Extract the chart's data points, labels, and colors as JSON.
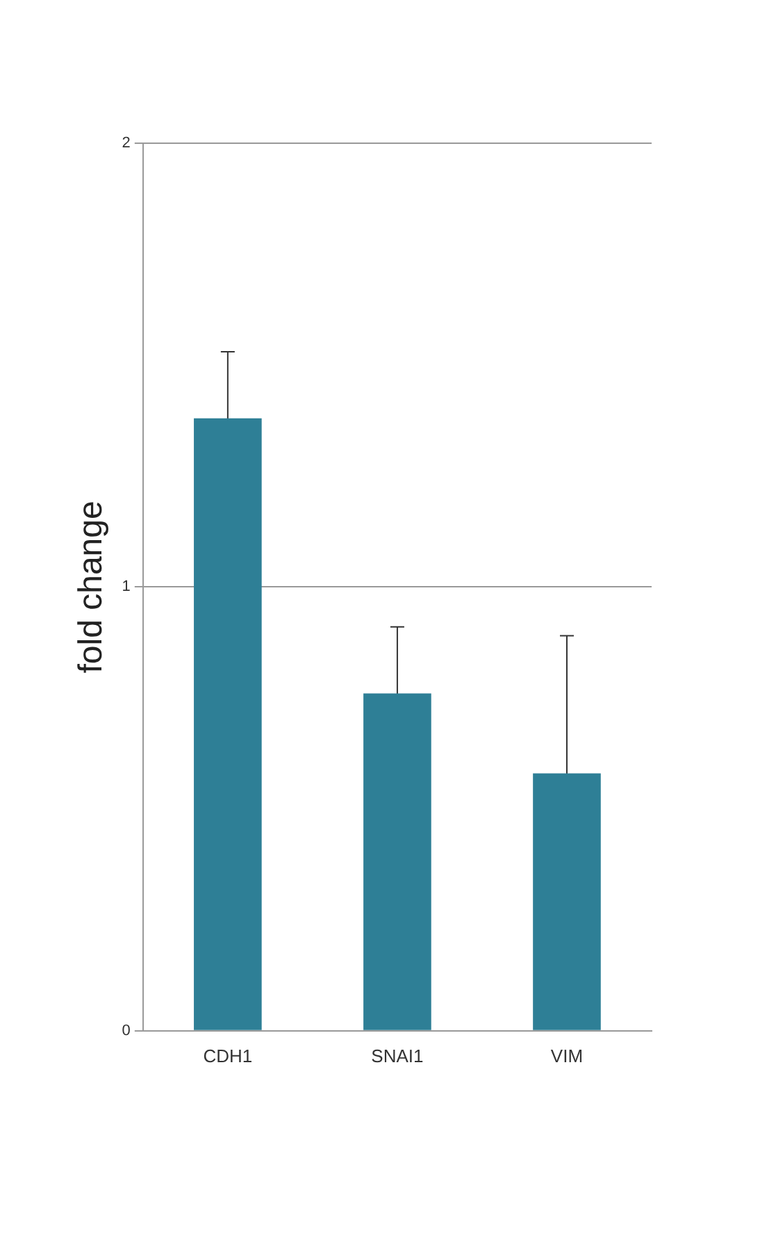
{
  "chart_data": {
    "type": "bar",
    "ylabel": "fold change",
    "categories": [
      "CDH1",
      "SNAI1",
      "VIM"
    ],
    "values": [
      1.38,
      0.76,
      0.58
    ],
    "color": "#2e7f96",
    "errors": [
      0.15,
      0.15,
      0.31
    ],
    "ylim": [
      0,
      2
    ],
    "yticks": [
      0,
      1,
      2
    ],
    "grid": "y"
  }
}
